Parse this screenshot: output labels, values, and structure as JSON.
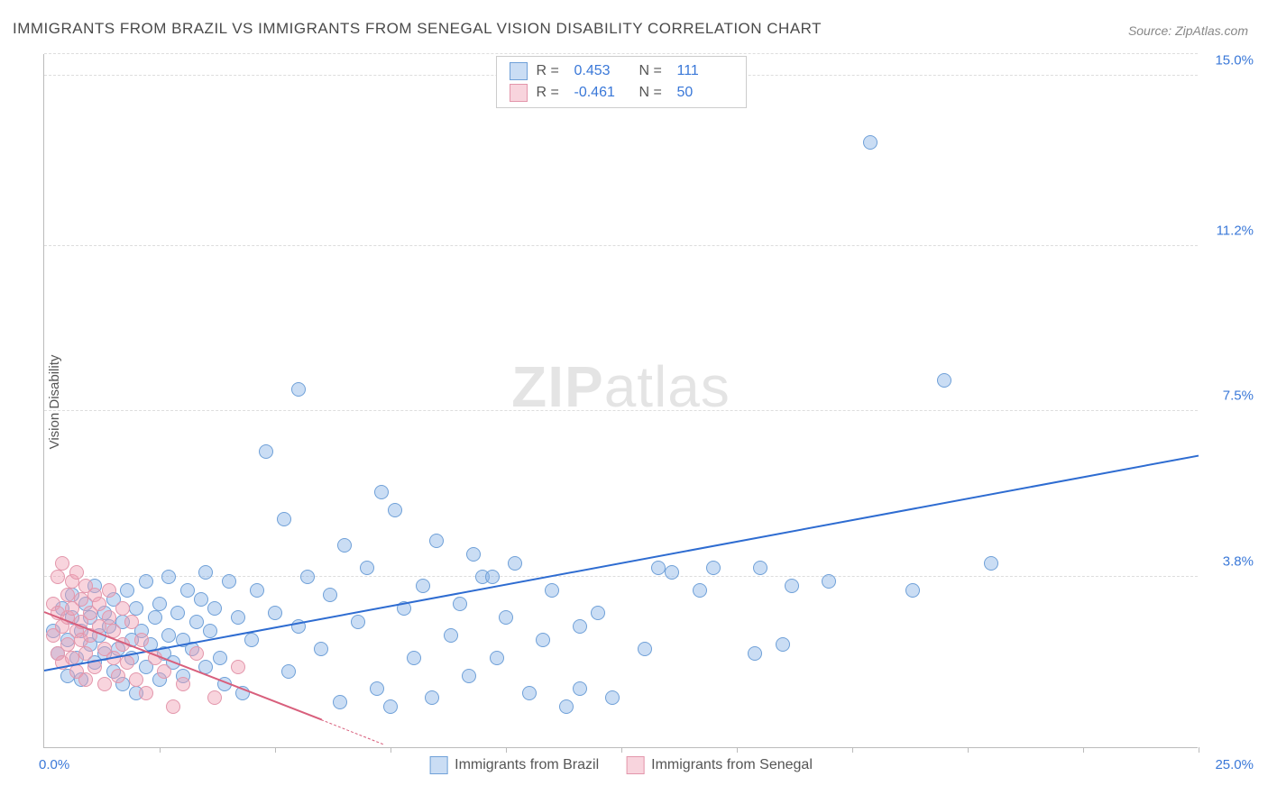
{
  "title": "IMMIGRANTS FROM BRAZIL VS IMMIGRANTS FROM SENEGAL VISION DISABILITY CORRELATION CHART",
  "source": "Source: ZipAtlas.com",
  "ylabel": "Vision Disability",
  "watermark_bold": "ZIP",
  "watermark_rest": "atlas",
  "chart": {
    "type": "scatter",
    "xlim": [
      0,
      25.0
    ],
    "ylim": [
      0,
      15.5
    ],
    "x_min_label": "0.0%",
    "x_max_label": "25.0%",
    "y_ticks": [
      {
        "value": 3.8,
        "label": "3.8%"
      },
      {
        "value": 7.5,
        "label": "7.5%"
      },
      {
        "value": 11.2,
        "label": "11.2%"
      },
      {
        "value": 15.0,
        "label": "15.0%"
      }
    ],
    "x_tick_step": 2.5,
    "x_tick_count": 10,
    "background_color": "#ffffff",
    "grid_color": "#dddddd",
    "marker_size": 16,
    "series": [
      {
        "name": "Immigrants from Brazil",
        "color_fill": "rgba(138,180,230,0.45)",
        "color_stroke": "#6fa0d8",
        "regression": {
          "x1": 0.0,
          "y1": 1.7,
          "x2": 25.0,
          "y2": 6.5,
          "color": "#2e6cd1",
          "width": 2.5
        },
        "points": [
          [
            0.2,
            2.6
          ],
          [
            0.3,
            2.1
          ],
          [
            0.4,
            3.1
          ],
          [
            0.5,
            2.4
          ],
          [
            0.5,
            1.6
          ],
          [
            0.6,
            2.9
          ],
          [
            0.6,
            3.4
          ],
          [
            0.7,
            2.0
          ],
          [
            0.8,
            2.6
          ],
          [
            0.8,
            1.5
          ],
          [
            0.9,
            3.2
          ],
          [
            1.0,
            2.3
          ],
          [
            1.0,
            2.9
          ],
          [
            1.1,
            1.9
          ],
          [
            1.1,
            3.6
          ],
          [
            1.2,
            2.5
          ],
          [
            1.3,
            2.1
          ],
          [
            1.3,
            3.0
          ],
          [
            1.4,
            2.7
          ],
          [
            1.5,
            1.7
          ],
          [
            1.5,
            3.3
          ],
          [
            1.6,
            2.2
          ],
          [
            1.7,
            2.8
          ],
          [
            1.7,
            1.4
          ],
          [
            1.8,
            3.5
          ],
          [
            1.9,
            2.4
          ],
          [
            1.9,
            2.0
          ],
          [
            2.0,
            1.2
          ],
          [
            2.0,
            3.1
          ],
          [
            2.1,
            2.6
          ],
          [
            2.2,
            1.8
          ],
          [
            2.2,
            3.7
          ],
          [
            2.3,
            2.3
          ],
          [
            2.4,
            2.9
          ],
          [
            2.5,
            1.5
          ],
          [
            2.5,
            3.2
          ],
          [
            2.6,
            2.1
          ],
          [
            2.7,
            3.8
          ],
          [
            2.7,
            2.5
          ],
          [
            2.8,
            1.9
          ],
          [
            2.9,
            3.0
          ],
          [
            3.0,
            2.4
          ],
          [
            3.0,
            1.6
          ],
          [
            3.1,
            3.5
          ],
          [
            3.2,
            2.2
          ],
          [
            3.3,
            2.8
          ],
          [
            3.4,
            3.3
          ],
          [
            3.5,
            1.8
          ],
          [
            3.5,
            3.9
          ],
          [
            3.6,
            2.6
          ],
          [
            3.7,
            3.1
          ],
          [
            3.8,
            2.0
          ],
          [
            3.9,
            1.4
          ],
          [
            4.0,
            3.7
          ],
          [
            4.2,
            2.9
          ],
          [
            4.3,
            1.2
          ],
          [
            4.5,
            2.4
          ],
          [
            4.6,
            3.5
          ],
          [
            4.8,
            6.6
          ],
          [
            5.0,
            3.0
          ],
          [
            5.2,
            5.1
          ],
          [
            5.3,
            1.7
          ],
          [
            5.5,
            2.7
          ],
          [
            5.5,
            8.0
          ],
          [
            5.7,
            3.8
          ],
          [
            6.0,
            2.2
          ],
          [
            6.2,
            3.4
          ],
          [
            6.4,
            1.0
          ],
          [
            6.5,
            4.5
          ],
          [
            6.8,
            2.8
          ],
          [
            7.0,
            4.0
          ],
          [
            7.2,
            1.3
          ],
          [
            7.3,
            5.7
          ],
          [
            7.5,
            0.9
          ],
          [
            7.6,
            5.3
          ],
          [
            7.8,
            3.1
          ],
          [
            8.0,
            2.0
          ],
          [
            8.2,
            3.6
          ],
          [
            8.5,
            4.6
          ],
          [
            8.4,
            1.1
          ],
          [
            8.8,
            2.5
          ],
          [
            9.0,
            3.2
          ],
          [
            9.2,
            1.6
          ],
          [
            9.5,
            3.8
          ],
          [
            9.3,
            4.3
          ],
          [
            9.8,
            2.0
          ],
          [
            9.7,
            3.8
          ],
          [
            10.0,
            2.9
          ],
          [
            10.2,
            4.1
          ],
          [
            10.5,
            1.2
          ],
          [
            10.8,
            2.4
          ],
          [
            11.0,
            3.5
          ],
          [
            11.3,
            0.9
          ],
          [
            11.6,
            1.3
          ],
          [
            11.6,
            2.7
          ],
          [
            12.0,
            3.0
          ],
          [
            12.3,
            1.1
          ],
          [
            13.0,
            2.2
          ],
          [
            13.3,
            4.0
          ],
          [
            13.6,
            3.9
          ],
          [
            14.2,
            3.5
          ],
          [
            14.5,
            4.0
          ],
          [
            15.5,
            4.0
          ],
          [
            15.4,
            2.1
          ],
          [
            16.2,
            3.6
          ],
          [
            16.0,
            2.3
          ],
          [
            17.0,
            3.7
          ],
          [
            17.9,
            13.5
          ],
          [
            19.5,
            8.2
          ],
          [
            20.5,
            4.1
          ],
          [
            18.8,
            3.5
          ]
        ]
      },
      {
        "name": "Immigrants from Senegal",
        "color_fill": "rgba(240,160,180,0.45)",
        "color_stroke": "#e396ab",
        "regression": {
          "x1": 0.0,
          "y1": 3.0,
          "x2": 6.0,
          "y2": 0.6,
          "color": "#d85f7c",
          "width": 2,
          "dashed_extend": {
            "x2": 8.7,
            "y2": -0.5
          }
        },
        "points": [
          [
            0.2,
            3.2
          ],
          [
            0.2,
            2.5
          ],
          [
            0.3,
            3.8
          ],
          [
            0.3,
            2.1
          ],
          [
            0.3,
            3.0
          ],
          [
            0.4,
            2.7
          ],
          [
            0.4,
            4.1
          ],
          [
            0.4,
            1.9
          ],
          [
            0.5,
            3.4
          ],
          [
            0.5,
            2.3
          ],
          [
            0.5,
            2.9
          ],
          [
            0.6,
            3.7
          ],
          [
            0.6,
            2.0
          ],
          [
            0.6,
            3.1
          ],
          [
            0.7,
            2.6
          ],
          [
            0.7,
            3.9
          ],
          [
            0.7,
            1.7
          ],
          [
            0.8,
            3.3
          ],
          [
            0.8,
            2.4
          ],
          [
            0.8,
            2.8
          ],
          [
            0.9,
            3.6
          ],
          [
            0.9,
            2.1
          ],
          [
            0.9,
            1.5
          ],
          [
            1.0,
            3.0
          ],
          [
            1.0,
            2.5
          ],
          [
            1.1,
            3.4
          ],
          [
            1.1,
            1.8
          ],
          [
            1.2,
            2.7
          ],
          [
            1.2,
            3.2
          ],
          [
            1.3,
            2.2
          ],
          [
            1.3,
            1.4
          ],
          [
            1.4,
            2.9
          ],
          [
            1.4,
            3.5
          ],
          [
            1.5,
            2.0
          ],
          [
            1.5,
            2.6
          ],
          [
            1.6,
            1.6
          ],
          [
            1.7,
            3.1
          ],
          [
            1.7,
            2.3
          ],
          [
            1.8,
            1.9
          ],
          [
            1.9,
            2.8
          ],
          [
            2.0,
            1.5
          ],
          [
            2.1,
            2.4
          ],
          [
            2.2,
            1.2
          ],
          [
            2.4,
            2.0
          ],
          [
            2.6,
            1.7
          ],
          [
            2.8,
            0.9
          ],
          [
            3.0,
            1.4
          ],
          [
            3.3,
            2.1
          ],
          [
            3.7,
            1.1
          ],
          [
            4.2,
            1.8
          ]
        ]
      }
    ]
  },
  "legend_top": [
    {
      "swatch_fill": "rgba(138,180,230,0.45)",
      "swatch_stroke": "#6fa0d8",
      "r_label": "R =",
      "r_value": "0.453",
      "n_label": "N =",
      "n_value": "111"
    },
    {
      "swatch_fill": "rgba(240,160,180,0.45)",
      "swatch_stroke": "#e396ab",
      "r_label": "R =",
      "r_value": "-0.461",
      "n_label": "N =",
      "n_value": "50"
    }
  ],
  "legend_bottom": [
    {
      "swatch_fill": "rgba(138,180,230,0.45)",
      "swatch_stroke": "#6fa0d8",
      "label": "Immigrants from Brazil"
    },
    {
      "swatch_fill": "rgba(240,160,180,0.45)",
      "swatch_stroke": "#e396ab",
      "label": "Immigrants from Senegal"
    }
  ]
}
